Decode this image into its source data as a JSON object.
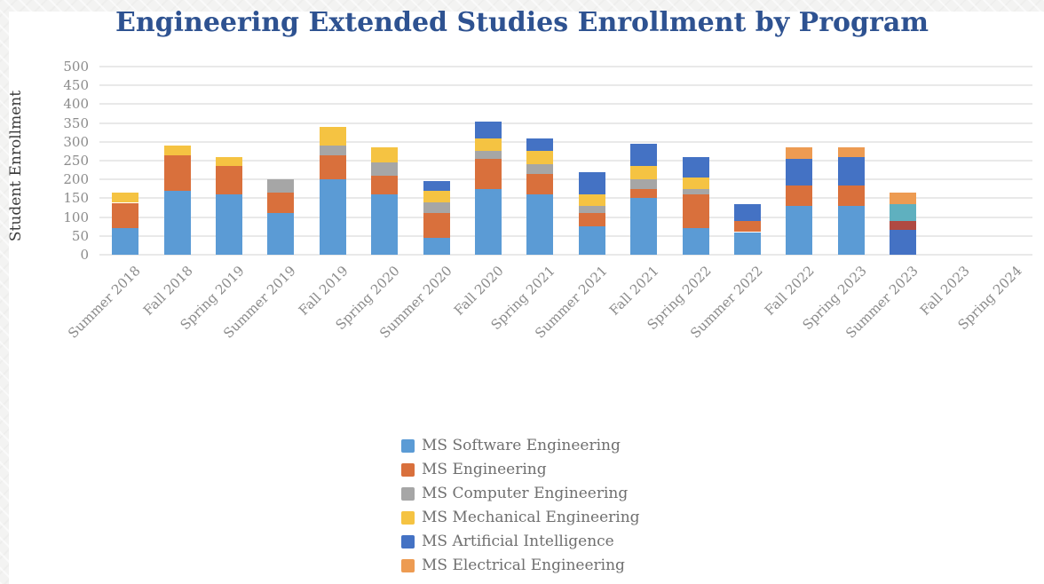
{
  "page": {
    "background_color": "#f3f3f2",
    "card_color": "#ffffff",
    "title_color": "#2e5291",
    "axis_text_color": "#8b8b8b",
    "axis_title_color": "#3b3b3b",
    "legend_text_color": "#6f6f6f",
    "gridline_color": "#e9e9e9"
  },
  "chart_data": {
    "type": "bar",
    "stacked": true,
    "title": "Engineering Extended Studies Enrollment by Program",
    "xlabel": "",
    "ylabel": "Student Enrollment",
    "ylim": [
      0,
      500
    ],
    "ytick_step": 50,
    "grid": true,
    "legend_position": "bottom-center",
    "x_label_rotation_deg": -45,
    "categories": [
      "Summer 2018",
      "Fall 2018",
      "Spring 2019",
      "Summer 2019",
      "Fall 2019",
      "Spring 2020",
      "Summer 2020",
      "Fall 2020",
      "Spring 2021",
      "Summer 2021",
      "Fall 2021",
      "Spring 2022",
      "Summer 2022",
      "Fall 2022",
      "Spring 2023",
      "Summer 2023",
      "Fall 2023",
      "Spring 2024"
    ],
    "series": [
      {
        "name": "MS Software Engineering",
        "color": "#5b9bd5",
        "in_legend": true,
        "values": [
          70,
          170,
          160,
          110,
          200,
          160,
          45,
          175,
          160,
          75,
          150,
          70,
          60,
          130,
          130,
          0,
          0,
          0
        ]
      },
      {
        "name": "MS Engineering",
        "color": "#d9703c",
        "in_legend": true,
        "values": [
          68,
          95,
          75,
          55,
          65,
          50,
          65,
          80,
          55,
          35,
          25,
          90,
          30,
          55,
          55,
          0,
          0,
          0
        ]
      },
      {
        "name": "MS Computer Engineering",
        "color": "#a6a6a6",
        "in_legend": true,
        "values": [
          0,
          0,
          0,
          35,
          25,
          35,
          30,
          20,
          25,
          20,
          25,
          15,
          0,
          0,
          0,
          0,
          0,
          0
        ]
      },
      {
        "name": "MS Mechanical Engineering",
        "color": "#f5c342",
        "in_legend": true,
        "values": [
          27,
          25,
          25,
          0,
          50,
          40,
          30,
          35,
          35,
          30,
          35,
          30,
          0,
          0,
          0,
          0,
          0,
          0
        ]
      },
      {
        "name": "MS Artificial Intelligence",
        "color": "#4472c4",
        "in_legend": true,
        "values": [
          0,
          0,
          0,
          0,
          0,
          0,
          25,
          45,
          35,
          60,
          60,
          55,
          45,
          70,
          75,
          65,
          0,
          0
        ]
      },
      {
        "name": "Unlabeled series (red)",
        "color": "#b04a42",
        "in_legend": false,
        "values": [
          0,
          0,
          0,
          0,
          0,
          0,
          0,
          0,
          0,
          0,
          0,
          0,
          0,
          0,
          0,
          25,
          0,
          0
        ]
      },
      {
        "name": "Unlabeled series (teal)",
        "color": "#5fb0bf",
        "in_legend": false,
        "values": [
          0,
          0,
          0,
          0,
          0,
          0,
          0,
          0,
          0,
          0,
          0,
          0,
          0,
          0,
          0,
          45,
          0,
          0
        ]
      },
      {
        "name": "MS Electrical Engineering",
        "color": "#ed9b52",
        "in_legend": true,
        "values": [
          0,
          0,
          0,
          0,
          0,
          0,
          0,
          0,
          0,
          0,
          0,
          0,
          0,
          30,
          25,
          30,
          0,
          0
        ]
      }
    ]
  }
}
